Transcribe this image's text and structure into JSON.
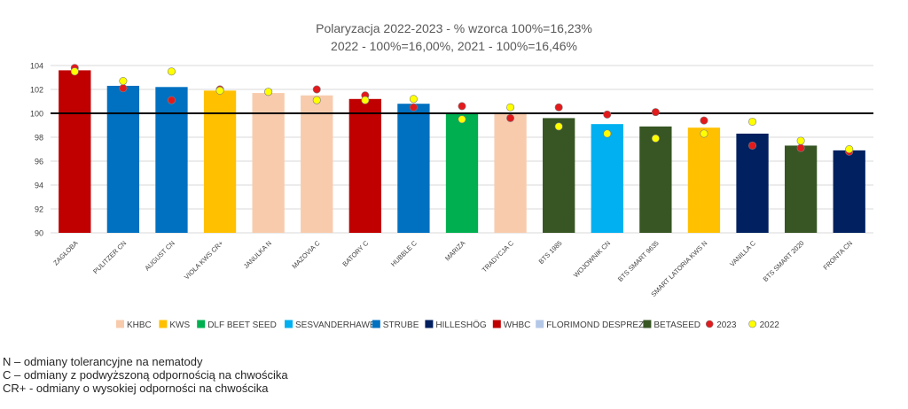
{
  "title": {
    "line1": "Polaryzacja 2022-2023 - % wzorca 100%=16,23%",
    "line2": "2022 - 100%=16,00%, 2021 - 100%=16,46%"
  },
  "notes": [
    "N – odmiany tolerancyjne na nematody",
    "C – odmiany z podwyższoną odpornością na chwościka",
    "CR+ - odmiany o wysokiej odporności na chwościka"
  ],
  "chart_data": {
    "type": "bar",
    "title": "Polaryzacja 2022-2023 - % wzorca 100%=16,23%\n2022 - 100%=16,00%, 2021 - 100%=16,46%",
    "categories": [
      "ZAGŁOBA",
      "PULITZER CN",
      "AUGUST CN",
      "VIOLA KWS CR+",
      "JANULKA N",
      "MAZOVIA C",
      "BATORY C",
      "HUBBLE C",
      "MARIZA",
      "TRADYCJA C",
      "BTS 1985",
      "WOJOWNIK CN",
      "BTS SMART 9635",
      "SMART LATORIA KWS N",
      "VANILLA C",
      "BTS SMART 2020",
      "FRONTA CN"
    ],
    "values": [
      103.6,
      102.3,
      102.2,
      101.9,
      101.7,
      101.5,
      101.2,
      100.8,
      100.0,
      100.0,
      99.6,
      99.1,
      98.9,
      98.8,
      98.3,
      97.3,
      96.9
    ],
    "bar_groups": [
      "WHBC",
      "STRUBE",
      "STRUBE",
      "KWS",
      "KHBC",
      "KHBC",
      "WHBC",
      "STRUBE",
      "DLF BEET SEED",
      "KHBC",
      "BETASEED",
      "SESVANDERHAWE",
      "BETASEED",
      "KWS",
      "HILLESHÖG",
      "BETASEED",
      "HILLESHÖG"
    ],
    "series": [
      {
        "name": "2023",
        "type": "scatter",
        "color": "#e31a1c",
        "values": [
          103.8,
          102.1,
          101.1,
          102.0,
          101.8,
          102.0,
          101.5,
          100.5,
          100.6,
          99.6,
          100.5,
          99.9,
          100.1,
          99.4,
          97.3,
          97.1,
          96.8
        ]
      },
      {
        "name": "2022",
        "type": "scatter",
        "color": "#ffff00",
        "values": [
          103.5,
          102.7,
          103.5,
          101.9,
          101.8,
          101.1,
          101.1,
          101.2,
          99.5,
          100.5,
          98.9,
          98.3,
          97.9,
          98.3,
          99.3,
          97.7,
          97.0
        ]
      }
    ],
    "reference_line": 100,
    "ylim": [
      90,
      104
    ],
    "yticks": [
      90,
      92,
      94,
      96,
      98,
      100,
      102,
      104
    ],
    "grid": true,
    "legend_position": "bottom",
    "legend": [
      {
        "name": "KHBC",
        "color": "#f8cbad",
        "kind": "square"
      },
      {
        "name": "KWS",
        "color": "#ffc000",
        "kind": "square"
      },
      {
        "name": "DLF BEET SEED",
        "color": "#00b050",
        "kind": "square"
      },
      {
        "name": "SESVANDERHAWE",
        "color": "#00b0f0",
        "kind": "square"
      },
      {
        "name": "STRUBE",
        "color": "#0070c0",
        "kind": "square"
      },
      {
        "name": "HILLESHÖG",
        "color": "#002060",
        "kind": "square"
      },
      {
        "name": "WHBC",
        "color": "#c00000",
        "kind": "square"
      },
      {
        "name": "FLORIMOND DESPREZ",
        "color": "#b4c7e7",
        "kind": "square"
      },
      {
        "name": "BETASEED",
        "color": "#375623",
        "kind": "square"
      },
      {
        "name": "2023",
        "color": "#e31a1c",
        "kind": "dot"
      },
      {
        "name": "2022",
        "color": "#ffff00",
        "kind": "dot"
      }
    ]
  }
}
